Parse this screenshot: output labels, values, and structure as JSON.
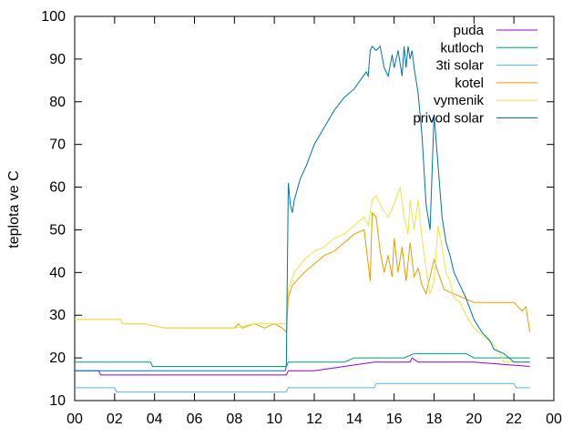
{
  "chart_data": {
    "type": "line",
    "title": "",
    "xlabel": "",
    "ylabel": "teplota ve C",
    "xlim": [
      0,
      24
    ],
    "ylim": [
      10,
      100
    ],
    "grid": false,
    "legend_position": "top-right",
    "x_tick_labels": [
      "00",
      "02",
      "04",
      "06",
      "08",
      "10",
      "12",
      "14",
      "16",
      "18",
      "20",
      "22",
      "00"
    ],
    "y_ticks": [
      10,
      20,
      30,
      40,
      50,
      60,
      70,
      80,
      90,
      100
    ],
    "series": [
      {
        "name": "puda",
        "color": "#9400d3",
        "x": [
          0,
          1.2,
          1.3,
          2.6,
          2.7,
          10.6,
          10.7,
          12.0,
          13.5,
          15.0,
          16.8,
          16.9,
          17.2,
          20.0,
          22.8
        ],
        "y": [
          17,
          17,
          16,
          16,
          16,
          16,
          17,
          17,
          18,
          19,
          19,
          20,
          19,
          19,
          18
        ]
      },
      {
        "name": "kutloch",
        "color": "#009e73",
        "x": [
          0,
          3.8,
          3.9,
          10.6,
          10.7,
          13.5,
          14.0,
          16.5,
          17.0,
          19.6,
          20.0,
          22.8
        ],
        "y": [
          19,
          19,
          18,
          18,
          19,
          19,
          20,
          20,
          21,
          21,
          20,
          20
        ]
      },
      {
        "name": "3ti solar",
        "color": "#56b4e9",
        "x": [
          0,
          2.0,
          2.1,
          10.6,
          10.7,
          15.0,
          15.1,
          22.0,
          22.1,
          22.8
        ],
        "y": [
          13,
          13,
          12,
          12,
          13,
          13,
          14,
          14,
          13,
          13
        ]
      },
      {
        "name": "kotel",
        "color": "#e69f00",
        "x": [
          0,
          2.3,
          2.4,
          3.5,
          4.5,
          8.0,
          8.2,
          8.4,
          9.0,
          9.5,
          10.0,
          10.4,
          10.6,
          10.7,
          10.9,
          11.5,
          12.0,
          12.5,
          13.0,
          13.5,
          14.0,
          14.5,
          14.7,
          14.8,
          14.9,
          15.1,
          15.3,
          15.5,
          15.7,
          15.9,
          16.0,
          16.2,
          16.4,
          16.6,
          16.8,
          17.0,
          17.2,
          17.4,
          17.6,
          17.8,
          18.0,
          18.2,
          18.5,
          19.0,
          19.5,
          20.0,
          20.5,
          21.0,
          21.5,
          22.0,
          22.4,
          22.6,
          22.8
        ],
        "y": [
          29,
          29,
          28,
          28,
          27,
          27,
          28,
          27,
          28,
          27,
          28,
          27,
          26,
          34,
          37,
          40,
          42,
          44,
          45,
          47,
          49,
          50,
          42,
          38,
          54,
          53,
          45,
          40,
          44,
          39,
          48,
          40,
          46,
          38,
          47,
          39,
          41,
          37,
          35,
          39,
          43,
          40,
          36,
          35,
          34,
          33,
          33,
          33,
          33,
          33,
          31,
          32,
          26
        ]
      },
      {
        "name": "vymenik",
        "color": "#f0e442",
        "x": [
          0,
          2.3,
          2.4,
          3.5,
          4.5,
          8.0,
          9.0,
          10.4,
          10.6,
          10.7,
          11.0,
          11.5,
          12.0,
          12.5,
          13.0,
          13.5,
          14.0,
          14.5,
          14.7,
          14.9,
          15.1,
          15.4,
          15.7,
          16.0,
          16.3,
          16.5,
          16.7,
          16.8,
          17.0,
          17.2,
          17.4,
          17.6,
          17.8,
          18.0,
          18.2,
          18.4,
          18.6,
          18.8,
          19.0,
          19.3,
          19.6,
          20.0,
          20.5,
          21.0,
          21.3,
          21.5,
          22.0,
          22.8
        ],
        "y": [
          29,
          29,
          28,
          28,
          27,
          27,
          28,
          28,
          28,
          36,
          40,
          43,
          45,
          46,
          48,
          49,
          51,
          53,
          51,
          57,
          58,
          55,
          53,
          56,
          60,
          53,
          49,
          57,
          50,
          57,
          48,
          41,
          35,
          38,
          51,
          46,
          40,
          38,
          34,
          33,
          30,
          27,
          25,
          23,
          21,
          19,
          19,
          19
        ]
      },
      {
        "name": "privod solar",
        "color": "#0072b2",
        "x": [
          0,
          10.55,
          10.6,
          10.7,
          10.8,
          10.9,
          11.0,
          11.3,
          11.6,
          12.0,
          12.5,
          13.0,
          13.5,
          14.0,
          14.3,
          14.6,
          14.7,
          14.8,
          14.9,
          15.1,
          15.3,
          15.5,
          15.7,
          15.9,
          16.0,
          16.2,
          16.4,
          16.5,
          16.6,
          16.7,
          16.8,
          16.9,
          17.0,
          17.2,
          17.4,
          17.6,
          17.8,
          18.0,
          18.2,
          18.4,
          18.6,
          18.8,
          19.0,
          19.3,
          19.6,
          20.0,
          20.4,
          20.8,
          21.0,
          21.5,
          22.0,
          22.8
        ],
        "y": [
          17,
          17,
          18,
          61,
          56,
          54,
          57,
          62,
          65,
          70,
          74,
          78,
          81,
          83,
          85,
          87,
          86,
          92,
          93,
          92,
          93,
          88,
          86,
          91,
          88,
          92,
          86,
          93,
          88,
          93,
          90,
          92,
          88,
          82,
          72,
          56,
          50,
          77,
          65,
          53,
          47,
          44,
          40,
          37,
          34,
          29,
          26,
          24,
          22,
          21,
          19,
          19
        ]
      }
    ]
  }
}
